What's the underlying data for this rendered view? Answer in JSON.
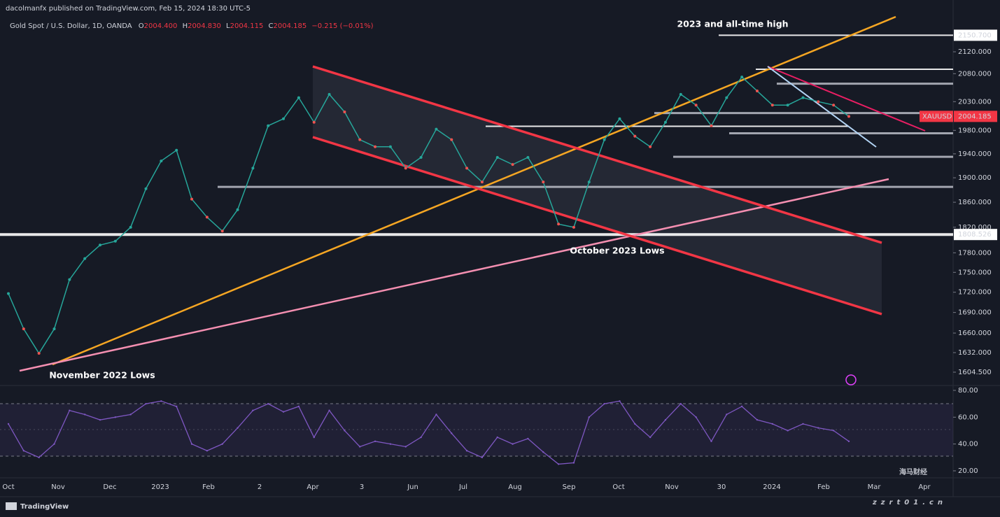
{
  "header": {
    "publisher": "dacolmanfx published on TradingView.com, Feb 15, 2024 18:30 UTC-5",
    "symbol": "Gold Spot / U.S. Dollar, 1D, OANDA",
    "open_label": "O",
    "open": "2004.400",
    "high_label": "H",
    "high": "2004.830",
    "low_label": "L",
    "low": "2004.115",
    "close_label": "C",
    "close": "2004.185",
    "change": "−0.215 (−0.01%)"
  },
  "price_chart": {
    "ylim": [
      1587,
      2185.5
    ],
    "log_scale": true,
    "yticks": [
      {
        "value": 2120,
        "label": "2120.000"
      },
      {
        "value": 2080,
        "label": "2080.000"
      },
      {
        "value": 2030,
        "label": "2030.000"
      },
      {
        "value": 1980,
        "label": "1980.000"
      },
      {
        "value": 1940,
        "label": "1940.000"
      },
      {
        "value": 1900,
        "label": "1900.000"
      },
      {
        "value": 1860,
        "label": "1860.000"
      },
      {
        "value": 1820,
        "label": "1820.000"
      },
      {
        "value": 1780,
        "label": "1780.000"
      },
      {
        "value": 1750,
        "label": "1750.000"
      },
      {
        "value": 1720,
        "label": "1720.000"
      },
      {
        "value": 1690,
        "label": "1690.000"
      },
      {
        "value": 1660,
        "label": "1660.000"
      },
      {
        "value": 1632,
        "label": "1632.000"
      },
      {
        "value": 1604.5,
        "label": "1604.500"
      }
    ],
    "price": [
      1718,
      1666,
      1631,
      1666,
      1739,
      1771,
      1792,
      1798,
      1820,
      1882,
      1928,
      1946,
      1865,
      1836,
      1814,
      1848,
      1916,
      1988,
      2000,
      2037,
      1994,
      2043,
      2012,
      1964,
      1952,
      1952,
      1916,
      1934,
      1982,
      1964,
      1916,
      1893,
      1934,
      1922,
      1934,
      1893,
      1825,
      1820,
      1893,
      1964,
      2000,
      1970,
      1952,
      1994,
      2043,
      2024,
      1988,
      2037,
      2074,
      2049,
      2024,
      2024,
      2037,
      2030,
      2024,
      2004.185
    ],
    "levels": [
      2150.7,
      2088,
      2062,
      1987,
      2010,
      1975,
      1935,
      1885,
      1808.526
    ],
    "price_labels": [
      {
        "value": 2150.7,
        "label": "2150.700"
      },
      {
        "value": 2004.185,
        "label": "2004.185",
        "symbol": "XAUUSD"
      },
      {
        "value": 1808.526,
        "label": "1808.526"
      }
    ],
    "annotations": [
      "2023 and all-time high",
      "November 2022 Lows",
      "October 2023 Lows"
    ],
    "time_labels": [
      "Oct",
      "Nov",
      "Dec",
      "2023",
      "Feb",
      "2",
      "Apr",
      "3",
      "Jun",
      "Jul",
      "Aug",
      "Sep",
      "Oct",
      "Nov",
      "30",
      "2024",
      "Feb",
      "Mar",
      "Apr"
    ]
  },
  "rsi": {
    "ylim": [
      15.3,
      82.6
    ],
    "yticks": [
      {
        "value": 80,
        "label": "80.00"
      },
      {
        "value": 60,
        "label": "60.00"
      },
      {
        "value": 40,
        "label": "40.00"
      },
      {
        "value": 20,
        "label": "20.00"
      }
    ],
    "values": [
      55,
      35,
      30,
      40,
      65,
      62,
      58,
      60,
      62,
      70,
      72,
      68,
      40,
      35,
      40,
      52,
      65,
      70,
      64,
      68,
      45,
      65,
      50,
      38,
      42,
      40,
      38,
      45,
      62,
      48,
      35,
      30,
      45,
      40,
      44,
      34,
      25,
      26,
      60,
      70,
      72,
      55,
      45,
      58,
      70,
      60,
      42,
      62,
      68,
      58,
      55,
      50,
      55,
      52,
      50,
      42
    ]
  },
  "footer": {
    "brand": "TradingView"
  },
  "watermark": {
    "name": "海马财经",
    "site": "zzrt01.cn"
  }
}
